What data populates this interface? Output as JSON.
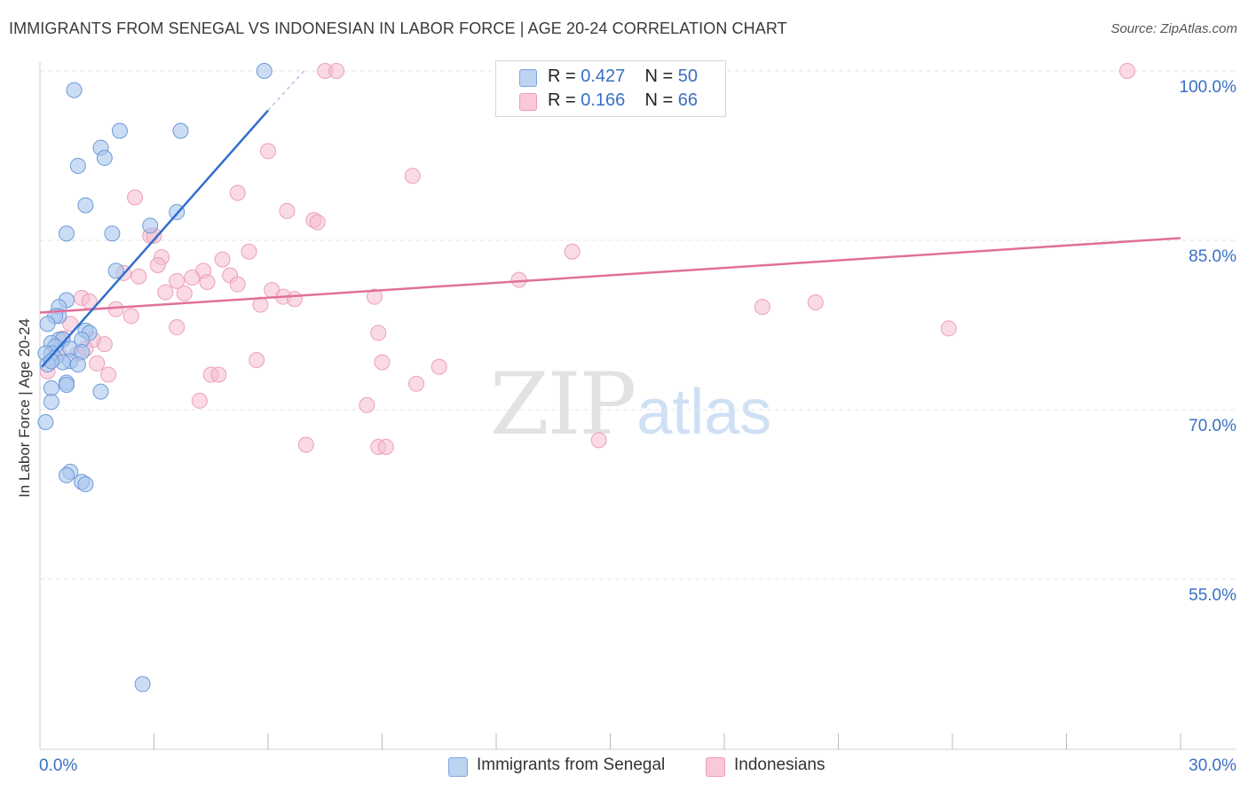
{
  "title": "IMMIGRANTS FROM SENEGAL VS INDONESIAN IN LABOR FORCE | AGE 20-24 CORRELATION CHART",
  "source": "Source: ZipAtlas.com",
  "watermark": {
    "zip": "ZIP",
    "atlas": "atlas"
  },
  "legend_top": {
    "rows": [
      {
        "r_label": "R = ",
        "r_value": "0.427",
        "n_label": "N = ",
        "n_value": "50"
      },
      {
        "r_label": "R = ",
        "r_value": "0.166",
        "n_label": "N = ",
        "n_value": "66"
      }
    ]
  },
  "legend_bottom": [
    "Immigrants from Senegal",
    "Indonesians"
  ],
  "chart_data": {
    "type": "scatter",
    "title": "IMMIGRANTS FROM SENEGAL VS INDONESIAN IN LABOR FORCE | AGE 20-24 CORRELATION CHART",
    "xlabel": "",
    "ylabel": "In Labor Force | Age 20-24",
    "xlim": [
      0,
      30
    ],
    "ylim": [
      40,
      101
    ],
    "x_tick_labels": [
      "0.0%",
      "30.0%"
    ],
    "y_ticks": [
      100,
      85,
      70,
      55
    ],
    "y_tick_labels": [
      "100.0%",
      "85.0%",
      "70.0%",
      "55.0%"
    ],
    "grid": true,
    "legend_position": "bottom",
    "colors": {
      "senegal": "#a9c7ee",
      "senegal_line": "#2f6fcc",
      "indonesian": "#f6bcd0",
      "indonesian_line": "#e0709a",
      "axis_label": "#3a6fc4"
    },
    "series": [
      {
        "name": "Immigrants from Senegal",
        "color": "#a9c7ee",
        "r": 0.427,
        "n": 50,
        "trend": {
          "x0": 0.05,
          "y0": 73.8,
          "x1": 6.0,
          "y1": 96.5,
          "dash_x1": 7.0,
          "dash_y1": 100.2
        },
        "points": [
          [
            5.9,
            100.0
          ],
          [
            0.9,
            98.3
          ],
          [
            2.1,
            94.7
          ],
          [
            3.7,
            94.7
          ],
          [
            1.6,
            93.2
          ],
          [
            1.7,
            92.3
          ],
          [
            1.0,
            91.6
          ],
          [
            1.2,
            88.1
          ],
          [
            3.6,
            87.5
          ],
          [
            2.9,
            86.3
          ],
          [
            0.7,
            85.6
          ],
          [
            1.9,
            85.6
          ],
          [
            2.0,
            82.3
          ],
          [
            0.7,
            79.7
          ],
          [
            0.5,
            79.1
          ],
          [
            0.5,
            78.3
          ],
          [
            0.4,
            78.3
          ],
          [
            0.2,
            77.6
          ],
          [
            1.2,
            77.0
          ],
          [
            1.3,
            76.8
          ],
          [
            0.5,
            76.2
          ],
          [
            0.6,
            76.2
          ],
          [
            1.1,
            76.2
          ],
          [
            0.3,
            75.9
          ],
          [
            0.4,
            75.6
          ],
          [
            0.8,
            75.4
          ],
          [
            1.1,
            75.1
          ],
          [
            0.3,
            75.0
          ],
          [
            0.15,
            75.0
          ],
          [
            0.4,
            74.6
          ],
          [
            0.8,
            74.3
          ],
          [
            0.6,
            74.2
          ],
          [
            1.0,
            74.0
          ],
          [
            0.2,
            74.0
          ],
          [
            0.3,
            74.3
          ],
          [
            0.7,
            72.4
          ],
          [
            0.7,
            72.2
          ],
          [
            0.3,
            71.9
          ],
          [
            1.6,
            71.6
          ],
          [
            0.3,
            70.7
          ],
          [
            0.15,
            68.9
          ],
          [
            0.8,
            64.5
          ],
          [
            0.7,
            64.2
          ],
          [
            1.1,
            63.6
          ],
          [
            1.2,
            63.4
          ],
          [
            2.7,
            45.7
          ]
        ]
      },
      {
        "name": "Indonesians",
        "color": "#f6bcd0",
        "r": 0.166,
        "n": 66,
        "trend": {
          "x0": 0.0,
          "y0": 78.6,
          "x1": 30.0,
          "y1": 85.2
        },
        "points": [
          [
            7.5,
            100.0
          ],
          [
            7.8,
            100.0
          ],
          [
            28.6,
            100.0
          ],
          [
            6.0,
            92.9
          ],
          [
            9.8,
            90.7
          ],
          [
            2.5,
            88.8
          ],
          [
            5.2,
            89.2
          ],
          [
            6.5,
            87.6
          ],
          [
            7.2,
            86.8
          ],
          [
            7.3,
            86.6
          ],
          [
            2.9,
            85.4
          ],
          [
            3.0,
            85.4
          ],
          [
            5.5,
            84.0
          ],
          [
            14.0,
            84.0
          ],
          [
            3.2,
            83.5
          ],
          [
            4.8,
            83.3
          ],
          [
            3.1,
            82.8
          ],
          [
            4.3,
            82.3
          ],
          [
            2.2,
            82.1
          ],
          [
            2.6,
            81.8
          ],
          [
            3.6,
            81.4
          ],
          [
            4.0,
            81.7
          ],
          [
            5.0,
            81.9
          ],
          [
            4.4,
            81.3
          ],
          [
            5.2,
            81.1
          ],
          [
            12.6,
            81.5
          ],
          [
            6.1,
            80.6
          ],
          [
            3.3,
            80.4
          ],
          [
            3.8,
            80.3
          ],
          [
            6.4,
            80.0
          ],
          [
            6.7,
            79.8
          ],
          [
            8.8,
            80.0
          ],
          [
            1.1,
            79.9
          ],
          [
            1.3,
            79.6
          ],
          [
            5.8,
            79.3
          ],
          [
            19.0,
            79.1
          ],
          [
            20.4,
            79.5
          ],
          [
            2.0,
            78.9
          ],
          [
            2.4,
            78.3
          ],
          [
            0.8,
            77.6
          ],
          [
            3.6,
            77.3
          ],
          [
            8.9,
            76.8
          ],
          [
            23.9,
            77.2
          ],
          [
            0.6,
            76.3
          ],
          [
            1.4,
            76.2
          ],
          [
            1.7,
            75.8
          ],
          [
            1.2,
            75.4
          ],
          [
            1.0,
            75.0
          ],
          [
            0.5,
            74.9
          ],
          [
            5.7,
            74.4
          ],
          [
            9.0,
            74.2
          ],
          [
            1.5,
            74.1
          ],
          [
            10.5,
            73.8
          ],
          [
            4.5,
            73.1
          ],
          [
            4.7,
            73.1
          ],
          [
            1.8,
            73.1
          ],
          [
            9.9,
            72.3
          ],
          [
            0.2,
            73.4
          ],
          [
            4.2,
            70.8
          ],
          [
            8.6,
            70.4
          ],
          [
            14.7,
            67.3
          ],
          [
            7.0,
            66.9
          ],
          [
            8.9,
            66.7
          ],
          [
            9.1,
            66.7
          ]
        ]
      }
    ]
  }
}
